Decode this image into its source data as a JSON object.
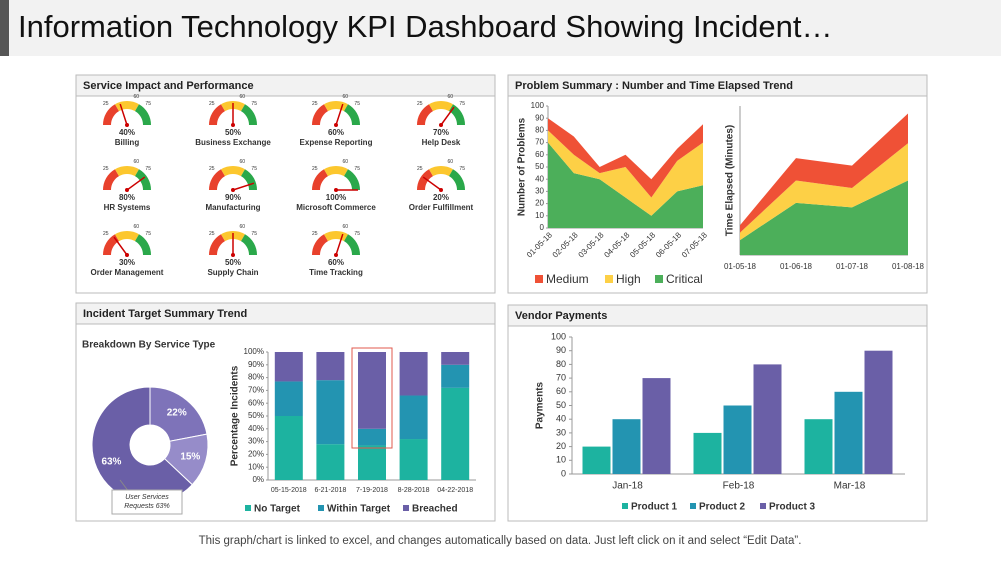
{
  "title": "Information Technology KPI Dashboard Showing Incident…",
  "footer": "This graph/chart is linked to excel, and changes automatically  based on data. Just left click on it and select “Edit Data”.",
  "chart_data": [
    {
      "type": "gauge",
      "title": "Service Impact and Performance",
      "categories": [
        "Billing",
        "Business Exchange",
        "Expense Reporting",
        "Help Desk",
        "HR  Systems",
        "Manufacturing",
        "Microsoft Commerce",
        "Order Fulfillment",
        "Order Management",
        "Supply Chain",
        "Time Tracking"
      ],
      "values": [
        40,
        50,
        60,
        70,
        80,
        90,
        100,
        20,
        30,
        50,
        60
      ],
      "value_labels": [
        "40%",
        "50%",
        "60%",
        "70%",
        "80%",
        "90%",
        "100%",
        "20%",
        "30%",
        "50%",
        "60%"
      ],
      "ylim": [
        0,
        100
      ],
      "ticks": [
        25,
        60,
        75
      ],
      "colors": [
        "#e8412c",
        "#fcc72e",
        "#2aa84a"
      ]
    },
    {
      "type": "stacked_area",
      "title": "Problem Summary : Number and Time Elapsed Trend",
      "ylabel": "Number of Problems",
      "categories": [
        "01-05-18",
        "02-05-18",
        "03-05-18",
        "04-05-18",
        "05-05-18",
        "06-05-18",
        "07-05-18"
      ],
      "series": [
        {
          "name": "Medium",
          "color": "#ef5136",
          "values": [
            10,
            15,
            5,
            10,
            15,
            10,
            15
          ]
        },
        {
          "name": "High",
          "color": "#fdd046",
          "values": [
            10,
            15,
            5,
            25,
            15,
            25,
            35
          ]
        },
        {
          "name": "Critical",
          "color": "#4caf5a",
          "values": [
            70,
            45,
            40,
            25,
            10,
            30,
            35
          ]
        }
      ],
      "ylim": [
        0,
        100
      ],
      "yticks": [
        0,
        10,
        20,
        30,
        40,
        50,
        60,
        70,
        80,
        90,
        100
      ]
    },
    {
      "type": "stacked_area",
      "ylabel": "Time Elapsed (Minutes)",
      "categories": [
        "01-05-18",
        "01-06-18",
        "01-07-18",
        "01-08-18"
      ],
      "series": [
        {
          "name": "Medium",
          "color": "#ef5136",
          "values": [
            5,
            15,
            15,
            20
          ]
        },
        {
          "name": "High",
          "color": "#fdd046",
          "values": [
            5,
            15,
            13,
            25
          ]
        },
        {
          "name": "Critical",
          "color": "#4caf5a",
          "values": [
            10,
            35,
            32,
            50
          ]
        }
      ],
      "ylim": [
        0,
        100
      ]
    },
    {
      "type": "donut",
      "title": "Incident Target Summary  Trend",
      "subtitle": "Breakdown By Service Type",
      "categories": [
        null,
        null,
        "User Services Requests"
      ],
      "values": [
        22,
        15,
        63
      ],
      "value_labels": [
        "22%",
        "15%",
        "63%"
      ],
      "colors": [
        "#7e73b9",
        "#968cc9",
        "#6a5fa7"
      ],
      "annotation": [
        "User Services",
        "Requests 63%"
      ]
    },
    {
      "type": "stacked_bar",
      "ylabel": "Percentage Incidents",
      "categories": [
        "05-15-2018",
        "6-21-2018",
        "7-19-2018",
        "8-28-2018",
        "04-22-2018"
      ],
      "series": [
        {
          "name": "No Target",
          "color": "#1db3a0",
          "values": [
            50,
            28,
            27,
            32,
            72
          ]
        },
        {
          "name": "Within Target",
          "color": "#2394b1",
          "values": [
            27,
            50,
            13,
            34,
            18
          ]
        },
        {
          "name": "Breached",
          "color": "#6a5fa7",
          "values": [
            23,
            22,
            60,
            34,
            10
          ]
        }
      ],
      "ylim": [
        0,
        100
      ],
      "yticks": [
        {
          "value": 0,
          "label": "0%"
        },
        {
          "value": 10,
          "label": "10%"
        },
        {
          "value": 20,
          "label": "20%"
        },
        {
          "value": 30,
          "label": "30%"
        },
        {
          "value": 40,
          "label": "40%"
        },
        {
          "value": 50,
          "label": "50%"
        },
        {
          "value": 60,
          "label": "60%"
        },
        {
          "value": 70,
          "label": "70%"
        },
        {
          "value": 80,
          "label": "80%"
        },
        {
          "value": 90,
          "label": "90%"
        },
        {
          "value": 100,
          "label": "100%"
        }
      ]
    },
    {
      "type": "bar",
      "title": "Vendor Payments",
      "ylabel": "Payments",
      "categories": [
        "Jan-18",
        "Feb-18",
        "Mar-18"
      ],
      "series": [
        {
          "name": "Product 1",
          "color": "#1db3a0",
          "values": [
            20,
            30,
            40
          ]
        },
        {
          "name": "Product 2",
          "color": "#2394b1",
          "values": [
            40,
            50,
            60
          ]
        },
        {
          "name": "Product 3",
          "color": "#6a5fa7",
          "values": [
            70,
            80,
            90
          ]
        }
      ],
      "ylim": [
        0,
        100
      ],
      "yticks": [
        0,
        10,
        20,
        30,
        40,
        50,
        60,
        70,
        80,
        90,
        100
      ]
    }
  ]
}
